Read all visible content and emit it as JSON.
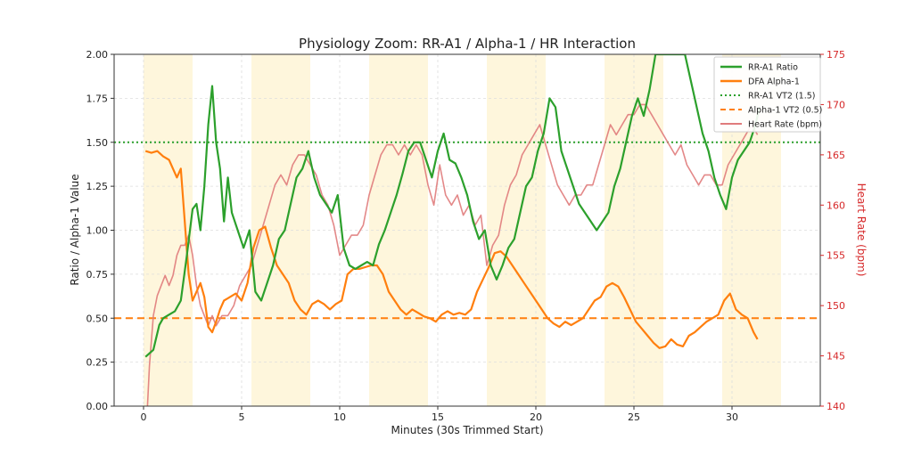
{
  "chart_data": {
    "type": "line",
    "title": "Physiology Zoom: RR-A1 / Alpha-1 / HR Interaction",
    "xlabel": "Minutes (30s Trimmed Start)",
    "ylabel_left": "Ratio / Alpha-1 Value",
    "ylabel_right": "Heart Rate (bpm)",
    "xlim": [
      -1.5,
      34.5
    ],
    "ylim_left": [
      0,
      2.0
    ],
    "ylim_right": [
      140,
      175
    ],
    "xticks": [
      0,
      5,
      10,
      15,
      20,
      25,
      30
    ],
    "yticks_left": [
      0.0,
      0.25,
      0.5,
      0.75,
      1.0,
      1.25,
      1.5,
      1.75,
      2.0
    ],
    "yticks_left_labels": [
      "0.00",
      "0.25",
      "0.50",
      "0.75",
      "1.00",
      "1.25",
      "1.50",
      "1.75",
      "2.00"
    ],
    "yticks_right": [
      140,
      145,
      150,
      155,
      160,
      165,
      170,
      175
    ],
    "grid": true,
    "legend_position": "top-right",
    "colors": {
      "rr_a1": "#2ca02c",
      "alpha1": "#ff7f0e",
      "hr": "#e07b7b",
      "hr_axis": "#d62728",
      "band": "#fdf3d0"
    },
    "shaded_intervals": [
      [
        0,
        2.5
      ],
      [
        5.5,
        8.5
      ],
      [
        11.5,
        14.5
      ],
      [
        17.5,
        20.5
      ],
      [
        23.5,
        26.5
      ],
      [
        29.5,
        32.5
      ]
    ],
    "reference_lines": [
      {
        "name": "RR-A1 VT2 (1.5)",
        "axis": "left",
        "y": 1.5,
        "style": "dotted",
        "color": "#2ca02c"
      },
      {
        "name": "Alpha-1 VT2 (0.5)",
        "axis": "left",
        "y": 0.5,
        "style": "dashed",
        "color": "#ff7f0e"
      }
    ],
    "series": [
      {
        "name": "RR-A1 Ratio",
        "axis": "left",
        "color": "#2ca02c",
        "x": [
          0.1,
          0.5,
          0.8,
          1.0,
          1.3,
          1.6,
          1.9,
          2.2,
          2.5,
          2.7,
          2.9,
          3.1,
          3.3,
          3.5,
          3.7,
          3.9,
          4.1,
          4.3,
          4.5,
          4.8,
          5.1,
          5.4,
          5.7,
          6.0,
          6.3,
          6.6,
          6.9,
          7.2,
          7.5,
          7.8,
          8.1,
          8.4,
          8.7,
          9.0,
          9.3,
          9.6,
          9.9,
          10.2,
          10.5,
          10.8,
          11.1,
          11.4,
          11.7,
          12.0,
          12.3,
          12.6,
          12.9,
          13.2,
          13.5,
          13.8,
          14.1,
          14.4,
          14.7,
          15.0,
          15.3,
          15.6,
          15.9,
          16.2,
          16.5,
          16.8,
          17.1,
          17.4,
          17.7,
          18.0,
          18.3,
          18.6,
          18.9,
          19.2,
          19.5,
          19.8,
          20.1,
          20.4,
          20.7,
          21.0,
          21.3,
          21.6,
          21.9,
          22.2,
          22.5,
          22.8,
          23.1,
          23.4,
          23.7,
          24.0,
          24.3,
          24.6,
          24.9,
          25.2,
          25.5,
          25.8,
          26.1,
          26.4,
          26.7,
          27.0,
          27.3,
          27.6,
          27.9,
          28.2,
          28.5,
          28.8,
          29.1,
          29.4,
          29.7,
          30.0,
          30.3,
          30.6,
          30.9,
          31.2,
          31.4
        ],
        "y": [
          0.28,
          0.32,
          0.46,
          0.5,
          0.52,
          0.54,
          0.6,
          0.85,
          1.12,
          1.15,
          1.0,
          1.25,
          1.6,
          1.82,
          1.5,
          1.35,
          1.05,
          1.3,
          1.1,
          1.0,
          0.9,
          1.0,
          0.65,
          0.6,
          0.7,
          0.8,
          0.95,
          1.0,
          1.15,
          1.3,
          1.35,
          1.45,
          1.3,
          1.2,
          1.15,
          1.1,
          1.2,
          0.9,
          0.8,
          0.78,
          0.8,
          0.82,
          0.8,
          0.92,
          1.0,
          1.1,
          1.2,
          1.32,
          1.45,
          1.5,
          1.5,
          1.4,
          1.3,
          1.45,
          1.55,
          1.4,
          1.38,
          1.3,
          1.2,
          1.05,
          0.95,
          1.0,
          0.8,
          0.72,
          0.8,
          0.9,
          0.95,
          1.1,
          1.25,
          1.3,
          1.45,
          1.55,
          1.75,
          1.7,
          1.45,
          1.35,
          1.25,
          1.15,
          1.1,
          1.05,
          1.0,
          1.05,
          1.1,
          1.25,
          1.35,
          1.5,
          1.65,
          1.75,
          1.65,
          1.8,
          2.0,
          2.0,
          2.0,
          2.0,
          2.0,
          2.0,
          1.85,
          1.7,
          1.55,
          1.45,
          1.3,
          1.2,
          1.12,
          1.3,
          1.4,
          1.45,
          1.5,
          1.6,
          1.7
        ]
      },
      {
        "name": "DFA Alpha-1",
        "axis": "left",
        "color": "#ff7f0e",
        "x": [
          0.1,
          0.4,
          0.7,
          1.0,
          1.3,
          1.5,
          1.7,
          1.9,
          2.1,
          2.3,
          2.5,
          2.7,
          2.9,
          3.1,
          3.3,
          3.5,
          3.7,
          3.9,
          4.1,
          4.4,
          4.7,
          5.0,
          5.3,
          5.6,
          5.9,
          6.2,
          6.5,
          6.8,
          7.1,
          7.4,
          7.7,
          8.0,
          8.3,
          8.6,
          8.9,
          9.2,
          9.5,
          9.8,
          10.1,
          10.4,
          10.7,
          11.0,
          11.3,
          11.6,
          11.9,
          12.2,
          12.5,
          12.8,
          13.1,
          13.4,
          13.7,
          14.0,
          14.3,
          14.6,
          14.9,
          15.2,
          15.5,
          15.8,
          16.1,
          16.4,
          16.7,
          17.0,
          17.3,
          17.6,
          17.9,
          18.2,
          18.5,
          18.8,
          19.1,
          19.4,
          19.7,
          20.0,
          20.3,
          20.6,
          20.9,
          21.2,
          21.5,
          21.8,
          22.1,
          22.4,
          22.7,
          23.0,
          23.3,
          23.6,
          23.9,
          24.2,
          24.5,
          24.8,
          25.1,
          25.4,
          25.7,
          26.0,
          26.3,
          26.6,
          26.9,
          27.2,
          27.5,
          27.8,
          28.1,
          28.4,
          28.7,
          29.0,
          29.3,
          29.6,
          29.9,
          30.2,
          30.5,
          30.8,
          31.1,
          31.3
        ],
        "y": [
          1.45,
          1.44,
          1.45,
          1.42,
          1.4,
          1.35,
          1.3,
          1.35,
          1.05,
          0.75,
          0.6,
          0.65,
          0.7,
          0.62,
          0.45,
          0.42,
          0.48,
          0.55,
          0.6,
          0.62,
          0.64,
          0.6,
          0.7,
          0.9,
          1.0,
          1.02,
          0.9,
          0.8,
          0.75,
          0.7,
          0.6,
          0.55,
          0.52,
          0.58,
          0.6,
          0.58,
          0.55,
          0.58,
          0.6,
          0.75,
          0.78,
          0.78,
          0.79,
          0.8,
          0.8,
          0.75,
          0.65,
          0.6,
          0.55,
          0.52,
          0.55,
          0.53,
          0.51,
          0.5,
          0.48,
          0.52,
          0.54,
          0.52,
          0.53,
          0.52,
          0.55,
          0.65,
          0.72,
          0.79,
          0.87,
          0.88,
          0.85,
          0.8,
          0.75,
          0.7,
          0.65,
          0.6,
          0.55,
          0.5,
          0.47,
          0.45,
          0.48,
          0.46,
          0.48,
          0.5,
          0.55,
          0.6,
          0.62,
          0.68,
          0.7,
          0.68,
          0.62,
          0.55,
          0.48,
          0.44,
          0.4,
          0.36,
          0.33,
          0.34,
          0.38,
          0.35,
          0.34,
          0.4,
          0.42,
          0.45,
          0.48,
          0.5,
          0.52,
          0.6,
          0.64,
          0.55,
          0.52,
          0.5,
          0.42,
          0.38
        ]
      },
      {
        "name": "Heart Rate (bpm)",
        "axis": "right",
        "color": "#e07b7b",
        "x": [
          0.2,
          0.3,
          0.5,
          0.7,
          0.9,
          1.1,
          1.3,
          1.5,
          1.7,
          1.9,
          2.1,
          2.3,
          2.5,
          2.7,
          2.9,
          3.1,
          3.3,
          3.5,
          3.7,
          4.0,
          4.3,
          4.6,
          4.9,
          5.2,
          5.5,
          5.8,
          6.1,
          6.4,
          6.7,
          7.0,
          7.3,
          7.6,
          7.9,
          8.2,
          8.5,
          8.8,
          9.1,
          9.4,
          9.7,
          10.0,
          10.3,
          10.6,
          10.9,
          11.2,
          11.5,
          11.8,
          12.1,
          12.4,
          12.7,
          13.0,
          13.3,
          13.6,
          13.9,
          14.2,
          14.5,
          14.8,
          15.1,
          15.4,
          15.7,
          16.0,
          16.3,
          16.6,
          16.9,
          17.2,
          17.5,
          17.8,
          18.1,
          18.4,
          18.7,
          19.0,
          19.3,
          19.6,
          19.9,
          20.2,
          20.5,
          20.8,
          21.1,
          21.4,
          21.7,
          22.0,
          22.3,
          22.6,
          22.9,
          23.2,
          23.5,
          23.8,
          24.1,
          24.4,
          24.7,
          25.0,
          25.3,
          25.6,
          25.9,
          26.2,
          26.5,
          26.8,
          27.1,
          27.4,
          27.7,
          28.0,
          28.3,
          28.6,
          28.9,
          29.2,
          29.5,
          29.8,
          30.1,
          30.4,
          30.7,
          31.0,
          31.3
        ],
        "y": [
          140,
          144,
          149,
          151,
          152,
          153,
          152,
          153,
          155,
          156,
          156,
          157,
          155,
          152,
          150,
          149,
          148,
          149,
          148,
          149,
          149,
          150,
          152,
          153,
          154,
          156,
          158,
          160,
          162,
          163,
          162,
          164,
          165,
          165,
          164,
          163,
          161,
          160,
          158,
          155,
          156,
          157,
          157,
          158,
          161,
          163,
          165,
          166,
          166,
          165,
          166,
          165,
          166,
          165,
          162,
          160,
          164,
          161,
          160,
          161,
          159,
          160,
          158,
          159,
          154,
          156,
          157,
          160,
          162,
          163,
          165,
          166,
          167,
          168,
          166,
          164,
          162,
          161,
          160,
          161,
          161,
          162,
          162,
          164,
          166,
          168,
          167,
          168,
          169,
          169,
          170,
          170,
          169,
          168,
          167,
          166,
          165,
          166,
          164,
          163,
          162,
          163,
          163,
          162,
          162,
          164,
          165,
          166,
          167,
          168,
          167
        ]
      }
    ]
  }
}
